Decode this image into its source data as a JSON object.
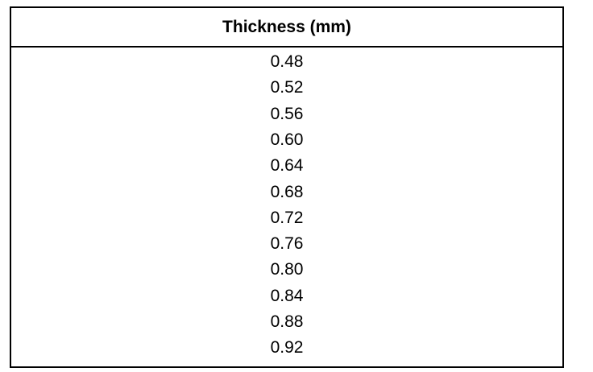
{
  "table": {
    "header": "Thickness (mm)",
    "rows": [
      [
        "0.48"
      ],
      [
        "0.52"
      ],
      [
        "0.56"
      ],
      [
        "0.60"
      ],
      [
        "0.64"
      ],
      [
        "0.68"
      ],
      [
        "0.72"
      ],
      [
        "0.76"
      ],
      [
        "0.80"
      ],
      [
        "0.84"
      ],
      [
        "0.88"
      ],
      [
        "0.92"
      ]
    ]
  }
}
